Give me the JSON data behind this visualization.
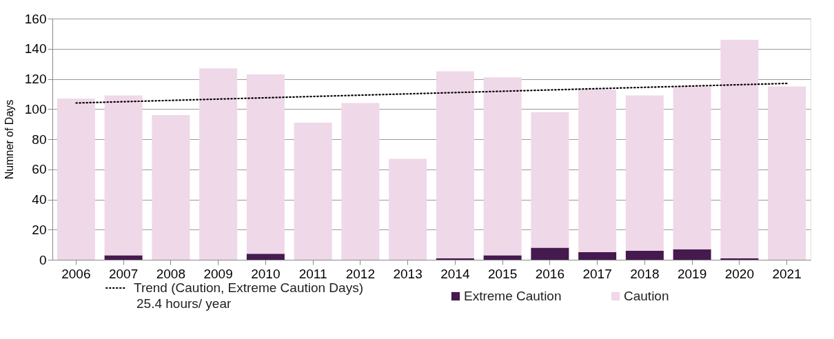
{
  "chart_data": {
    "type": "bar",
    "stacked": true,
    "categories": [
      "2006",
      "2007",
      "2008",
      "2009",
      "2010",
      "2011",
      "2012",
      "2013",
      "2014",
      "2015",
      "2016",
      "2017",
      "2018",
      "2019",
      "2020",
      "2021"
    ],
    "series": [
      {
        "name": "Extreme Caution",
        "color": "#451a4f",
        "values": [
          0,
          3,
          0,
          0,
          4,
          0,
          0,
          0,
          1,
          3,
          8,
          5,
          6,
          7,
          1,
          0
        ]
      },
      {
        "name": "Caution",
        "color": "#efd8e8",
        "values": [
          107,
          106,
          96,
          127,
          119,
          91,
          104,
          67,
          124,
          118,
          90,
          108,
          103,
          108,
          145,
          115
        ]
      },
      {
        "name": "Trend (Caution, Extreme Caution Days)",
        "type": "line",
        "color": "#000000",
        "line_style": "dotted",
        "values": [
          104,
          null,
          null,
          null,
          null,
          null,
          null,
          null,
          null,
          null,
          null,
          null,
          null,
          null,
          null,
          117
        ]
      }
    ],
    "ylabel": "Numner of Days",
    "ylim": [
      0,
      160
    ],
    "yticks": [
      0,
      20,
      40,
      60,
      80,
      100,
      120,
      140,
      160
    ],
    "grid": "y",
    "legend": "bottom",
    "annotations": [
      "25.4 hours/ year"
    ]
  }
}
